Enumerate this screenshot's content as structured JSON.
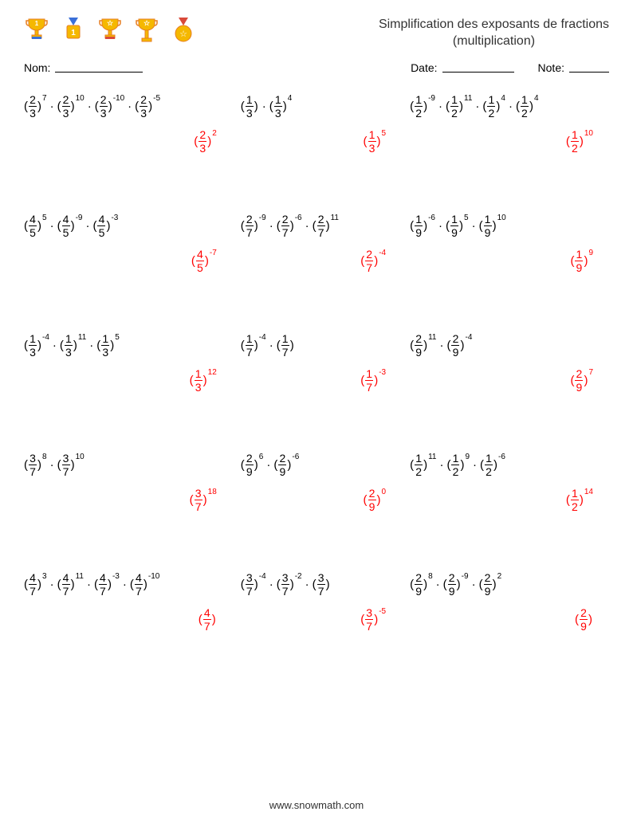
{
  "colors": {
    "text": "#000000",
    "answer": "#ff0000",
    "background": "#ffffff",
    "trophy_gold": "#f5b800",
    "trophy_orange": "#e67e22",
    "trophy_ribbon_blue": "#3a6fd8",
    "trophy_ribbon_red": "#d94a3a",
    "trophy_badge": "#ffffff"
  },
  "title_line1": "Simplification des exposants de fractions",
  "title_line2": "(multiplication)",
  "labels": {
    "name": "Nom:",
    "date": "Date:",
    "score": "Note:"
  },
  "blank_widths": {
    "name": 110,
    "date": 90,
    "score": 50
  },
  "trophies": [
    {
      "type": "cup",
      "label": "1",
      "ribbon": "#3a6fd8"
    },
    {
      "type": "medal_sq",
      "label": "1",
      "ribbon": "#3a6fd8"
    },
    {
      "type": "cup",
      "label": "☆",
      "ribbon": "#d94a3a"
    },
    {
      "type": "cup_tall",
      "label": "☆",
      "ribbon": "none"
    },
    {
      "type": "medal_round",
      "label": "☆",
      "ribbon": "#d94a3a"
    }
  ],
  "footer": "www.snowmath.com",
  "problems": [
    [
      {
        "terms": [
          {
            "n": "2",
            "d": "3",
            "e": "7"
          },
          {
            "n": "2",
            "d": "3",
            "e": "10"
          },
          {
            "n": "2",
            "d": "3",
            "e": "-10"
          },
          {
            "n": "2",
            "d": "3",
            "e": "-5"
          }
        ],
        "ans": {
          "n": "2",
          "d": "3",
          "e": "2"
        }
      },
      {
        "terms": [
          {
            "n": "1",
            "d": "3",
            "e": ""
          },
          {
            "n": "1",
            "d": "3",
            "e": "4"
          }
        ],
        "ans": {
          "n": "1",
          "d": "3",
          "e": "5"
        }
      },
      {
        "terms": [
          {
            "n": "1",
            "d": "2",
            "e": "-9"
          },
          {
            "n": "1",
            "d": "2",
            "e": "11"
          },
          {
            "n": "1",
            "d": "2",
            "e": "4"
          },
          {
            "n": "1",
            "d": "2",
            "e": "4"
          }
        ],
        "ans": {
          "n": "1",
          "d": "2",
          "e": "10"
        }
      }
    ],
    [
      {
        "terms": [
          {
            "n": "4",
            "d": "5",
            "e": "5"
          },
          {
            "n": "4",
            "d": "5",
            "e": "-9"
          },
          {
            "n": "4",
            "d": "5",
            "e": "-3"
          }
        ],
        "ans": {
          "n": "4",
          "d": "5",
          "e": "-7"
        }
      },
      {
        "terms": [
          {
            "n": "2",
            "d": "7",
            "e": "-9"
          },
          {
            "n": "2",
            "d": "7",
            "e": "-6"
          },
          {
            "n": "2",
            "d": "7",
            "e": "11"
          }
        ],
        "ans": {
          "n": "2",
          "d": "7",
          "e": "-4"
        }
      },
      {
        "terms": [
          {
            "n": "1",
            "d": "9",
            "e": "-6"
          },
          {
            "n": "1",
            "d": "9",
            "e": "5"
          },
          {
            "n": "1",
            "d": "9",
            "e": "10"
          }
        ],
        "ans": {
          "n": "1",
          "d": "9",
          "e": "9"
        }
      }
    ],
    [
      {
        "terms": [
          {
            "n": "1",
            "d": "3",
            "e": "-4"
          },
          {
            "n": "1",
            "d": "3",
            "e": "11"
          },
          {
            "n": "1",
            "d": "3",
            "e": "5"
          }
        ],
        "ans": {
          "n": "1",
          "d": "3",
          "e": "12"
        }
      },
      {
        "terms": [
          {
            "n": "1",
            "d": "7",
            "e": "-4"
          },
          {
            "n": "1",
            "d": "7",
            "e": ""
          }
        ],
        "ans": {
          "n": "1",
          "d": "7",
          "e": "-3"
        }
      },
      {
        "terms": [
          {
            "n": "2",
            "d": "9",
            "e": "11"
          },
          {
            "n": "2",
            "d": "9",
            "e": "-4"
          }
        ],
        "ans": {
          "n": "2",
          "d": "9",
          "e": "7"
        }
      }
    ],
    [
      {
        "terms": [
          {
            "n": "3",
            "d": "7",
            "e": "8"
          },
          {
            "n": "3",
            "d": "7",
            "e": "10"
          }
        ],
        "ans": {
          "n": "3",
          "d": "7",
          "e": "18"
        }
      },
      {
        "terms": [
          {
            "n": "2",
            "d": "9",
            "e": "6"
          },
          {
            "n": "2",
            "d": "9",
            "e": "-6"
          }
        ],
        "ans": {
          "n": "2",
          "d": "9",
          "e": "0"
        }
      },
      {
        "terms": [
          {
            "n": "1",
            "d": "2",
            "e": "11"
          },
          {
            "n": "1",
            "d": "2",
            "e": "9"
          },
          {
            "n": "1",
            "d": "2",
            "e": "-6"
          }
        ],
        "ans": {
          "n": "1",
          "d": "2",
          "e": "14"
        }
      }
    ],
    [
      {
        "terms": [
          {
            "n": "4",
            "d": "7",
            "e": "3"
          },
          {
            "n": "4",
            "d": "7",
            "e": "11"
          },
          {
            "n": "4",
            "d": "7",
            "e": "-3"
          },
          {
            "n": "4",
            "d": "7",
            "e": "-10"
          }
        ],
        "ans": {
          "n": "4",
          "d": "7",
          "e": ""
        }
      },
      {
        "terms": [
          {
            "n": "3",
            "d": "7",
            "e": "-4"
          },
          {
            "n": "3",
            "d": "7",
            "e": "-2"
          },
          {
            "n": "3",
            "d": "7",
            "e": ""
          }
        ],
        "ans": {
          "n": "3",
          "d": "7",
          "e": "-5"
        }
      },
      {
        "terms": [
          {
            "n": "2",
            "d": "9",
            "e": "8"
          },
          {
            "n": "2",
            "d": "9",
            "e": "-9"
          },
          {
            "n": "2",
            "d": "9",
            "e": "2"
          }
        ],
        "ans": {
          "n": "2",
          "d": "9",
          "e": ""
        }
      }
    ]
  ]
}
